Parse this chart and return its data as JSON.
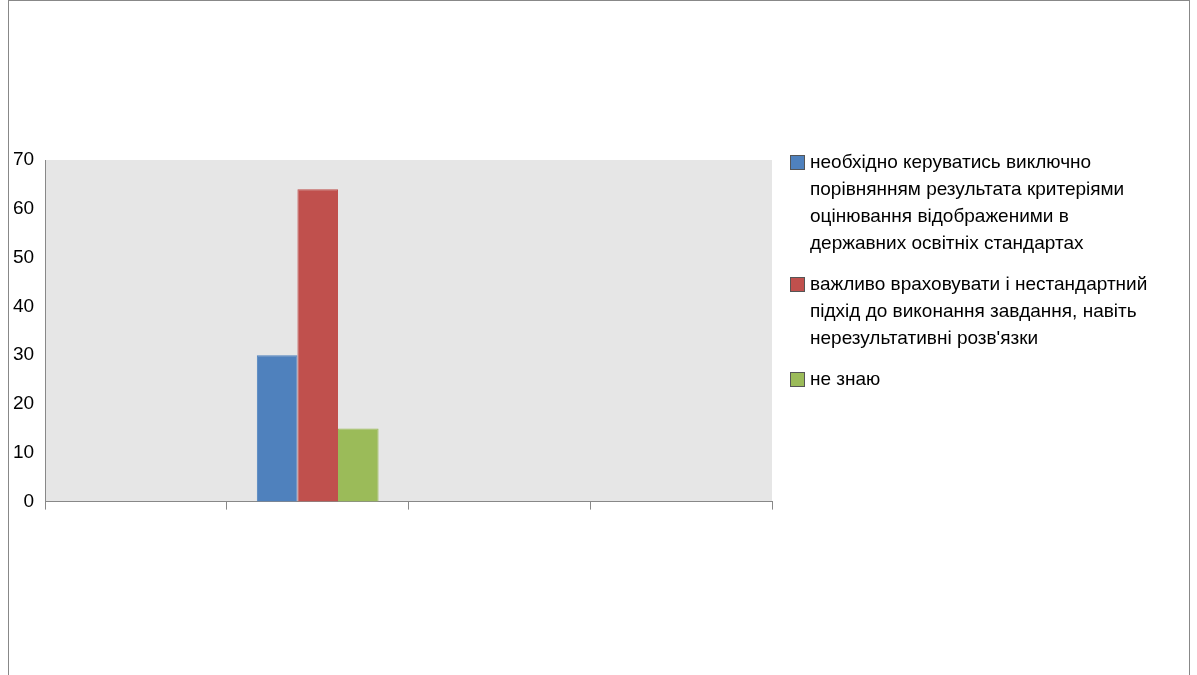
{
  "chart_data": {
    "type": "bar",
    "categories": [
      null,
      null,
      null,
      null
    ],
    "series": [
      {
        "name": "необхідно керуватись виключно порівнянням результата критеріями оцінювання відображеними в державних освітніх стандартах",
        "color": "#4f81bd",
        "values": [
          null,
          30,
          null,
          null
        ]
      },
      {
        "name": "важливо враховувати і нестандартний підхід до виконання завдання, навіть нерезультативні розв'язки",
        "color": "#c0504d",
        "values": [
          null,
          64,
          null,
          null
        ]
      },
      {
        "name": "не знаю",
        "color": "#9bbb59",
        "values": [
          null,
          15,
          null,
          null
        ]
      }
    ],
    "ylim": [
      0,
      70
    ],
    "yticks": [
      0,
      10,
      20,
      30,
      40,
      50,
      60,
      70
    ],
    "grid": false,
    "legend": "right"
  }
}
